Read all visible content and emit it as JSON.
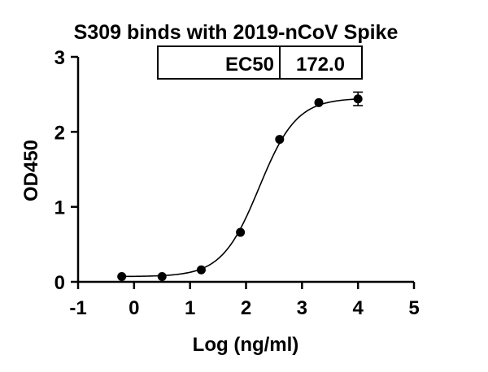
{
  "chart_data": {
    "type": "scatter",
    "title": "S309 binds with 2019-nCoV Spike",
    "xlabel": "Log (ng/ml)",
    "ylabel": "OD450",
    "xlim": [
      -1,
      5
    ],
    "ylim": [
      0,
      3
    ],
    "x_ticks": [
      "-1",
      "0",
      "1",
      "2",
      "3",
      "4",
      "5"
    ],
    "y_ticks": [
      "0",
      "1",
      "2",
      "3"
    ],
    "grid": false,
    "legend": "none",
    "points": [
      {
        "x": -0.22,
        "y": 0.07
      },
      {
        "x": 0.5,
        "y": 0.07
      },
      {
        "x": 1.2,
        "y": 0.16
      },
      {
        "x": 1.9,
        "y": 0.66
      },
      {
        "x": 2.6,
        "y": 1.9
      },
      {
        "x": 3.3,
        "y": 2.39
      },
      {
        "x": 4.0,
        "y": 2.44,
        "err": 0.09
      }
    ],
    "fit": {
      "model": "4PL",
      "bottom": 0.07,
      "top": 2.45,
      "logEC50": 2.2355,
      "hill": 1.3
    },
    "table": {
      "label": "EC50",
      "value": "172.0"
    }
  }
}
